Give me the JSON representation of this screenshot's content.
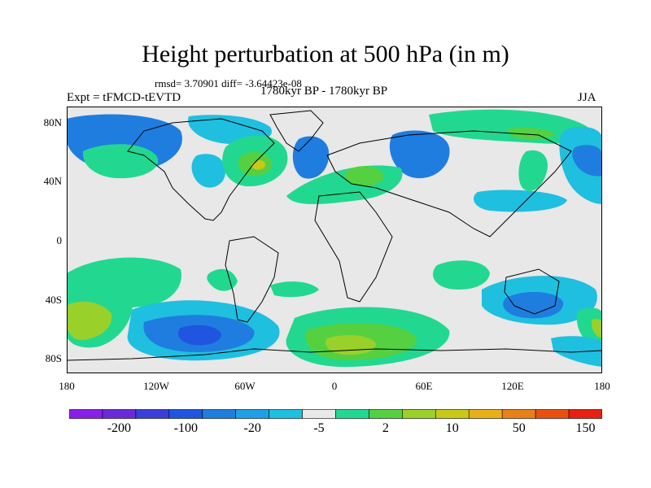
{
  "header": {
    "title": "Height perturbation at 500 hPa (in m)",
    "stats": "rmsd= 3.70901 diff= -3.64423e-08",
    "experiment": "Expt = tFMCD-tEVTD",
    "period": "1780kyr BP - 1780kyr BP",
    "season": "JJA"
  },
  "axes": {
    "lat_ticks": [
      "80N",
      "40N",
      "0",
      "40S",
      "80S"
    ],
    "lon_ticks": [
      "180",
      "120W",
      "60W",
      "0",
      "60E",
      "120E",
      "180"
    ]
  },
  "colorbar": {
    "colors": [
      "#8a1fe8",
      "#6a2ad8",
      "#3a3ed8",
      "#1f55e0",
      "#1f7de0",
      "#1fa0e6",
      "#1fbfe0",
      "#e8e8e8",
      "#22d890",
      "#55d040",
      "#9ad02a",
      "#c8c818",
      "#e8b018",
      "#e88018",
      "#e85010",
      "#e82010"
    ],
    "labels": [
      "-200",
      "-100",
      "-20",
      "-5",
      "2",
      "10",
      "50",
      "150"
    ]
  },
  "field_colors": {
    "neg3": "#1f55e0",
    "neg2": "#1f7de0",
    "neg1": "#1fbfe0",
    "zero": "#e8e8e8",
    "pos1": "#22d890",
    "pos2": "#55d040",
    "pos3": "#9ad02a",
    "pos4": "#c8c818"
  }
}
